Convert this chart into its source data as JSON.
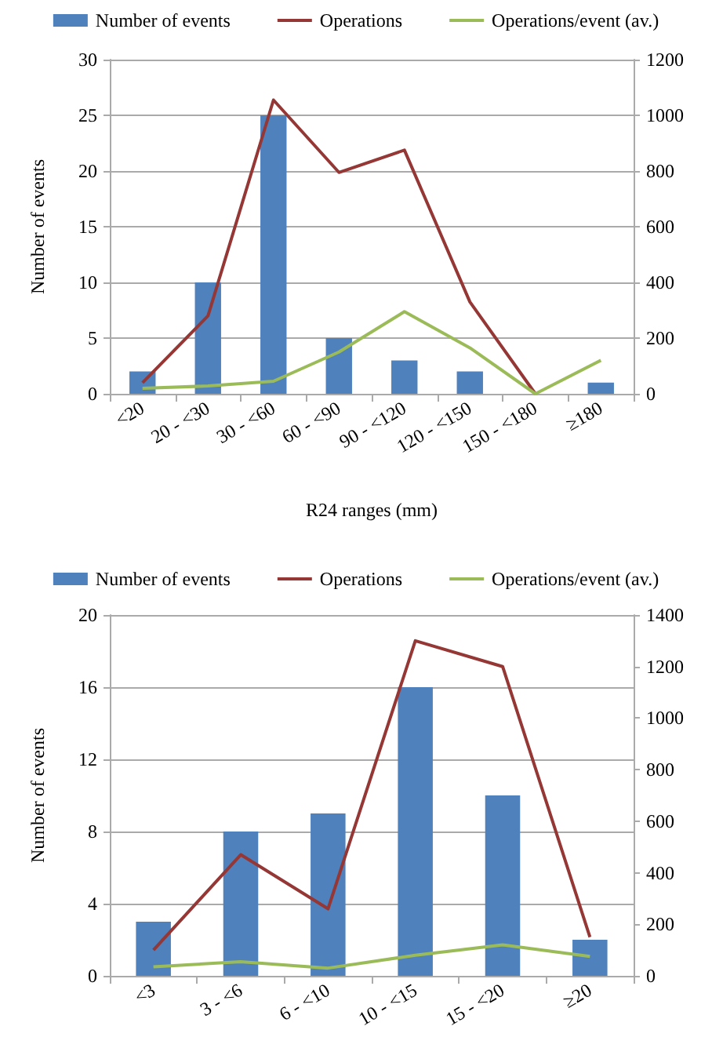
{
  "chart_data": [
    {
      "type": "bar",
      "xlabel": "R24 ranges (mm)",
      "ylabel": "Number of events",
      "categories": [
        "<20",
        "20 - <30",
        "30 - <60",
        "60 - <90",
        "90 - <120",
        "120 - <150",
        "150 - <180",
        "≥180"
      ],
      "series": [
        {
          "name": "Number of events",
          "color": "#4f81bd",
          "values": [
            2,
            10,
            25,
            5,
            3,
            2,
            0,
            1
          ]
        },
        {
          "name": "Operations",
          "type": "line",
          "axis": "y2",
          "color": "#953735",
          "values": [
            40,
            280,
            1055,
            795,
            875,
            330,
            0,
            null
          ]
        },
        {
          "name": "Operations/event (av.)",
          "type": "line",
          "axis": "y2",
          "color": "#9bbb59",
          "values": [
            20,
            28,
            45,
            150,
            295,
            165,
            0,
            120
          ]
        }
      ],
      "ylim": [
        0,
        30
      ],
      "yticks": [
        0,
        5,
        10,
        15,
        20,
        25,
        30
      ],
      "y2lim": [
        0,
        1200
      ],
      "y2ticks": [
        0,
        200,
        400,
        600,
        800,
        1000,
        1200
      ],
      "grid": "y",
      "legend": "top",
      "marker": "none"
    },
    {
      "type": "bar",
      "ylabel": "Number of events",
      "categories": [
        "<3",
        "3 - <6",
        "6 - <10",
        "10 - <15",
        "15 - <20",
        "≥20"
      ],
      "series": [
        {
          "name": "Number of events",
          "color": "#4f81bd",
          "values": [
            3,
            8,
            9,
            16,
            10,
            2
          ]
        },
        {
          "name": "Operations",
          "type": "line",
          "axis": "y2",
          "color": "#953735",
          "values": [
            100,
            470,
            260,
            1300,
            1200,
            150
          ]
        },
        {
          "name": "Operations/event (av.)",
          "type": "line",
          "axis": "y2",
          "color": "#9bbb59",
          "values": [
            35,
            55,
            30,
            80,
            120,
            75
          ]
        }
      ],
      "ylim": [
        0,
        20
      ],
      "yticks": [
        0,
        4,
        8,
        12,
        16,
        20
      ],
      "y2lim": [
        0,
        1400
      ],
      "y2ticks": [
        0,
        200,
        400,
        600,
        800,
        1000,
        1200,
        1400
      ],
      "grid": "y",
      "legend": "top",
      "marker": "none"
    }
  ]
}
